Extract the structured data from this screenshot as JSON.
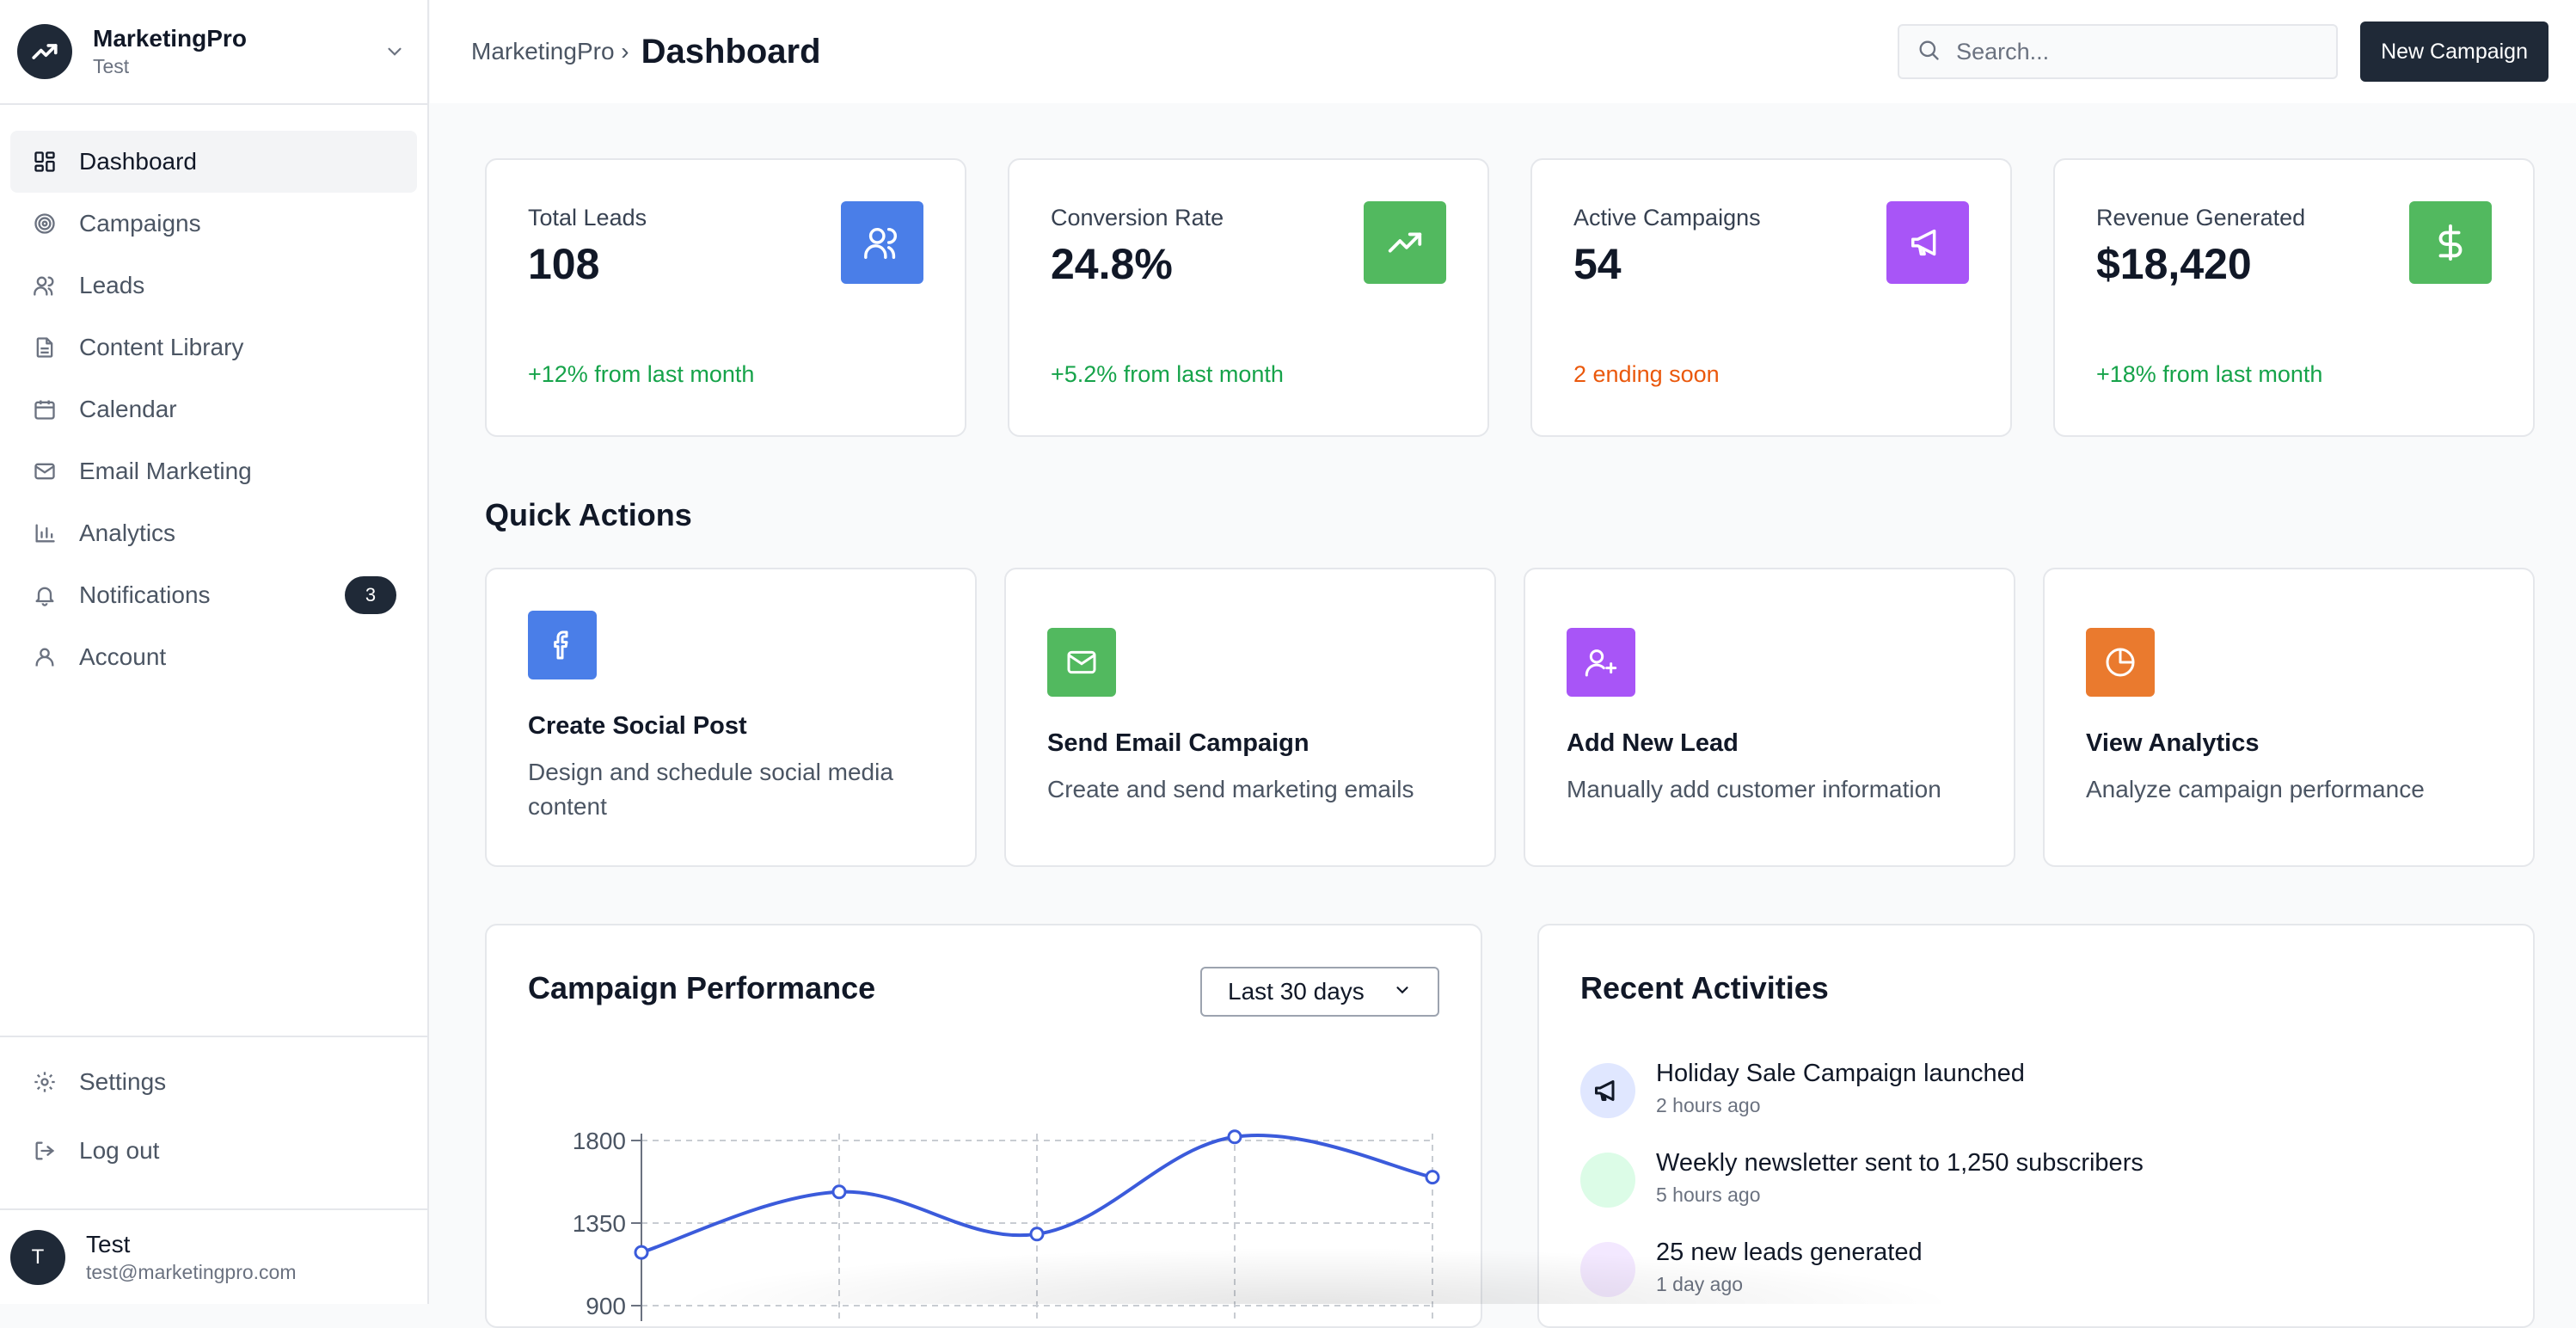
{
  "brand": {
    "name": "MarketingPro",
    "subtitle": "Test"
  },
  "sidebar": {
    "items": [
      {
        "label": "Dashboard",
        "icon": "grid-icon"
      },
      {
        "label": "Campaigns",
        "icon": "target-icon"
      },
      {
        "label": "Leads",
        "icon": "users-icon"
      },
      {
        "label": "Content Library",
        "icon": "file-icon"
      },
      {
        "label": "Calendar",
        "icon": "calendar-icon"
      },
      {
        "label": "Email Marketing",
        "icon": "mail-icon"
      },
      {
        "label": "Analytics",
        "icon": "bar-chart-icon"
      },
      {
        "label": "Notifications",
        "icon": "bell-icon",
        "badge": "3"
      },
      {
        "label": "Account",
        "icon": "user-icon"
      }
    ],
    "bottom": [
      {
        "label": "Settings",
        "icon": "gear-icon"
      },
      {
        "label": "Log out",
        "icon": "logout-icon"
      }
    ],
    "user": {
      "initial": "T",
      "name": "Test",
      "email": "test@marketingpro.com"
    }
  },
  "header": {
    "breadcrumb": "MarketingPro ›",
    "title": "Dashboard",
    "search_placeholder": "Search...",
    "new_campaign_label": "New Campaign"
  },
  "stats": [
    {
      "title": "Total Leads",
      "value": "108",
      "note": "+12% from last month",
      "note_color": "#16a34a",
      "icon": "users-icon",
      "icon_bg": "#4a7ee8"
    },
    {
      "title": "Conversion Rate",
      "value": "24.8%",
      "note": "+5.2% from last month",
      "note_color": "#16a34a",
      "icon": "trending-up-icon",
      "icon_bg": "#52b95f"
    },
    {
      "title": "Active Campaigns",
      "value": "54",
      "note": "2 ending soon",
      "note_color": "#ea580c",
      "icon": "megaphone-icon",
      "icon_bg": "#a855f7"
    },
    {
      "title": "Revenue Generated",
      "value": "$18,420",
      "note": "+18% from last month",
      "note_color": "#16a34a",
      "icon": "dollar-icon",
      "icon_bg": "#52b95f"
    }
  ],
  "quick_actions": {
    "title": "Quick Actions",
    "items": [
      {
        "title": "Create Social Post",
        "desc": "Design and schedule social media content",
        "icon": "facebook-icon",
        "icon_bg": "#4a7ee8"
      },
      {
        "title": "Send Email Campaign",
        "desc": "Create and send marketing emails",
        "icon": "mail-icon",
        "icon_bg": "#52b95f"
      },
      {
        "title": "Add New Lead",
        "desc": "Manually add customer information",
        "icon": "user-plus-icon",
        "icon_bg": "#a855f7"
      },
      {
        "title": "View Analytics",
        "desc": "Analyze campaign performance",
        "icon": "pie-chart-icon",
        "icon_bg": "#ea7a2e"
      }
    ]
  },
  "performance": {
    "title": "Campaign Performance",
    "range": "Last 30 days"
  },
  "chart_data": {
    "type": "line",
    "x": [
      0,
      1,
      2,
      3,
      4
    ],
    "series": [
      {
        "values": [
          1190,
          1520,
          1290,
          1820,
          1600
        ],
        "color": "#3b5bdb"
      }
    ],
    "yticks": [
      "1800",
      "1350",
      "900"
    ],
    "ytick_values": [
      1800,
      1350,
      900
    ],
    "ylim": [
      450,
      1800
    ],
    "grid": true
  },
  "activities": {
    "title": "Recent Activities",
    "items": [
      {
        "title": "Holiday Sale Campaign launched",
        "time": "2 hours ago",
        "icon": "megaphone-icon",
        "icon_bg": "#e0e7ff"
      },
      {
        "title": "Weekly newsletter sent to 1,250 subscribers",
        "time": "5 hours ago",
        "icon": "mail-icon",
        "icon_bg": "#dcfce7"
      },
      {
        "title": "25 new leads generated",
        "time": "1 day ago",
        "icon": "users-icon",
        "icon_bg": "#f3e8ff"
      }
    ]
  }
}
